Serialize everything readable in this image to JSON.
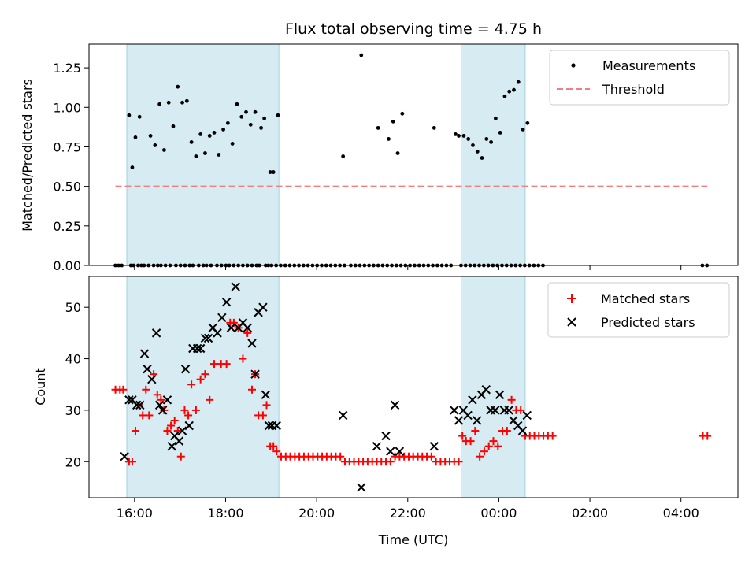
{
  "chart_data": [
    {
      "type": "scatter",
      "title": "Flux total observing time = 4.75 h",
      "xlabel": "",
      "ylabel": "Matched/Predicted stars",
      "ylim": [
        0,
        1.4
      ],
      "yticks": [
        "0.00",
        "0.25",
        "0.50",
        "0.75",
        "1.00",
        "1.25"
      ],
      "ytick_values": [
        0,
        0.25,
        0.5,
        0.75,
        1.0,
        1.25
      ],
      "xlim_hours": [
        15.0,
        29.25
      ],
      "xticks": [],
      "legend": {
        "placement": "top-right",
        "entries": [
          "Measurements",
          "Threshold"
        ]
      },
      "shaded_spans_hours": [
        [
          15.83,
          19.17
        ],
        [
          23.17,
          24.58
        ]
      ],
      "threshold": {
        "name": "Threshold",
        "y": 0.5,
        "x_start_hours": 15.58,
        "x_end_hours": 28.58,
        "color": "#f08080"
      },
      "series": [
        {
          "name": "Measurements",
          "color": "#000000",
          "x_hours": [
            15.58,
            15.65,
            15.72,
            15.92,
            15.98,
            16.08,
            16.15,
            16.21,
            16.31,
            16.42,
            16.51,
            16.58,
            16.68,
            16.78,
            16.91,
            17.01,
            17.11,
            17.21,
            17.28,
            17.41,
            17.51,
            17.58,
            17.68,
            17.81,
            17.91,
            18.01,
            18.08,
            18.18,
            18.28,
            18.38,
            18.48,
            18.58,
            18.68,
            18.74,
            18.88,
            18.94,
            19.01,
            19.11,
            19.21,
            19.31,
            19.41,
            19.51,
            19.61,
            19.71,
            19.81,
            19.91,
            20.01,
            20.11,
            20.21,
            20.31,
            20.41,
            20.51,
            20.61,
            20.75,
            20.85,
            20.95,
            21.05,
            21.15,
            21.25,
            21.35,
            21.45,
            21.55,
            21.65,
            21.75,
            21.85,
            21.95,
            22.05,
            22.15,
            22.25,
            22.35,
            22.45,
            22.55,
            22.65,
            22.75,
            22.85,
            22.95,
            23.17,
            23.27,
            23.37,
            23.47,
            23.57,
            23.67,
            23.77,
            23.87,
            23.97,
            24.07,
            24.17,
            24.27,
            24.37,
            24.47,
            24.57,
            24.67,
            24.77,
            24.87,
            24.97,
            28.47,
            28.57,
            15.88,
            15.95,
            16.02,
            16.11,
            16.35,
            16.45,
            16.55,
            16.65,
            16.75,
            16.85,
            16.95,
            17.05,
            17.15,
            17.25,
            17.35,
            17.45,
            17.55,
            17.65,
            17.75,
            17.85,
            17.95,
            18.05,
            18.15,
            18.25,
            18.35,
            18.45,
            18.55,
            18.65,
            18.78,
            18.85,
            18.98,
            19.05,
            19.15,
            20.58,
            20.98,
            21.35,
            21.58,
            21.68,
            21.78,
            21.88,
            22.58,
            23.05,
            23.12,
            23.23,
            23.33,
            23.43,
            23.53,
            23.63,
            23.73,
            23.83,
            23.93,
            24.03,
            24.13,
            24.23,
            24.33,
            24.43,
            24.53,
            24.63
          ],
          "y": [
            0,
            0,
            0,
            0,
            0,
            0,
            0,
            0,
            0,
            0,
            0,
            0,
            0,
            0,
            0,
            0,
            0,
            0,
            0,
            0,
            0,
            0,
            0,
            0,
            0,
            0,
            0,
            0,
            0,
            0,
            0,
            0,
            0,
            0,
            0,
            0,
            0,
            0,
            0,
            0,
            0,
            0,
            0,
            0,
            0,
            0,
            0,
            0,
            0,
            0,
            0,
            0,
            0,
            0,
            0,
            0,
            0,
            0,
            0,
            0,
            0,
            0,
            0,
            0,
            0,
            0,
            0,
            0,
            0,
            0,
            0,
            0,
            0,
            0,
            0,
            0,
            0,
            0,
            0,
            0,
            0,
            0,
            0,
            0,
            0,
            0,
            0,
            0,
            0,
            0,
            0,
            0,
            0,
            0,
            0,
            0,
            0,
            0.95,
            0.62,
            0.81,
            0.94,
            0.82,
            0.76,
            1.02,
            0.73,
            1.03,
            0.88,
            1.13,
            1.03,
            1.04,
            0.78,
            0.69,
            0.83,
            0.71,
            0.82,
            0.84,
            0.7,
            0.86,
            0.9,
            0.77,
            1.02,
            0.94,
            0.97,
            0.89,
            0.97,
            0.87,
            0.93,
            0.59,
            0.59,
            0.95,
            0.69,
            1.33,
            0.87,
            0.8,
            0.91,
            0.71,
            0.96,
            0.87,
            0.83,
            0.82,
            0.82,
            0.8,
            0.76,
            0.72,
            0.68,
            0.8,
            0.78,
            0.93,
            0.84,
            1.07,
            1.1,
            1.11,
            1.16,
            0.86,
            0.9
          ]
        }
      ]
    },
    {
      "type": "scatter",
      "title": "",
      "xlabel": "Time (UTC)",
      "ylabel": "Count",
      "ylim": [
        13,
        56
      ],
      "yticks": [
        "20",
        "30",
        "40",
        "50"
      ],
      "ytick_values": [
        20,
        30,
        40,
        50
      ],
      "xlim_hours": [
        15.0,
        29.25
      ],
      "xticks": [
        "16:00",
        "18:00",
        "20:00",
        "22:00",
        "00:00",
        "02:00",
        "04:00"
      ],
      "xtick_hours": [
        16,
        18,
        20,
        22,
        24,
        26,
        28
      ],
      "legend": {
        "placement": "top-right",
        "entries": [
          "Matched stars",
          "Predicted stars"
        ]
      },
      "shaded_spans_hours": [
        [
          15.83,
          19.17
        ],
        [
          23.17,
          24.58
        ]
      ],
      "series": [
        {
          "name": "Matched stars",
          "marker": "plus",
          "color": "#ff0000",
          "x_hours": [
            15.58,
            15.68,
            15.75,
            15.88,
            15.95,
            16.02,
            16.1,
            16.18,
            16.25,
            16.32,
            16.42,
            16.5,
            16.58,
            16.65,
            16.72,
            16.8,
            16.88,
            16.95,
            17.02,
            17.1,
            17.18,
            17.25,
            17.35,
            17.45,
            17.55,
            17.65,
            17.75,
            17.9,
            18.02,
            18.1,
            18.18,
            18.28,
            18.38,
            18.48,
            18.58,
            18.65,
            18.72,
            18.82,
            18.9,
            18.98,
            19.05,
            19.12,
            19.22,
            19.32,
            19.42,
            19.52,
            19.62,
            19.72,
            19.82,
            19.92,
            20.02,
            20.12,
            20.22,
            20.32,
            20.42,
            20.52,
            20.62,
            20.72,
            20.82,
            20.92,
            21.02,
            21.12,
            21.22,
            21.32,
            21.42,
            21.52,
            21.62,
            21.72,
            21.82,
            21.92,
            22.02,
            22.12,
            22.22,
            22.32,
            22.42,
            22.52,
            22.62,
            22.72,
            22.82,
            22.92,
            23.02,
            23.12,
            23.2,
            23.28,
            23.38,
            23.48,
            23.58,
            23.68,
            23.78,
            23.88,
            23.98,
            24.08,
            24.18,
            24.28,
            24.38,
            24.48,
            24.58,
            24.68,
            24.78,
            24.88,
            24.98,
            25.08,
            25.18,
            28.48,
            28.58
          ],
          "y": [
            34,
            34,
            34,
            20,
            20,
            26,
            31,
            29,
            34,
            29,
            37,
            33,
            32,
            30,
            26,
            27,
            28,
            26,
            21,
            30,
            29,
            35,
            30,
            36,
            37,
            32,
            39,
            39,
            39,
            47,
            47,
            46,
            40,
            45,
            34,
            37,
            29,
            29,
            31,
            23,
            23,
            22,
            21,
            21,
            21,
            21,
            21,
            21,
            21,
            21,
            21,
            21,
            21,
            21,
            21,
            21,
            20,
            20,
            20,
            20,
            20,
            20,
            20,
            20,
            20,
            20,
            20,
            21,
            21,
            21,
            21,
            21,
            21,
            21,
            21,
            21,
            20,
            20,
            20,
            20,
            20,
            20,
            25,
            24,
            24,
            26,
            21,
            22,
            23,
            24,
            23,
            26,
            26,
            32,
            30,
            30,
            25,
            25,
            25,
            25,
            25,
            25,
            25,
            25,
            25
          ]
        },
        {
          "name": "Predicted stars",
          "marker": "x",
          "color": "#000000",
          "x_hours": [
            15.78,
            15.88,
            15.95,
            16.05,
            16.12,
            16.22,
            16.28,
            16.38,
            16.48,
            16.55,
            16.62,
            16.72,
            16.82,
            16.88,
            16.98,
            17.05,
            17.12,
            17.2,
            17.28,
            17.38,
            17.45,
            17.55,
            17.62,
            17.72,
            17.82,
            17.92,
            18.02,
            18.12,
            18.22,
            18.28,
            18.38,
            18.48,
            18.58,
            18.65,
            18.72,
            18.82,
            18.88,
            18.95,
            19.02,
            19.12,
            20.58,
            20.98,
            21.32,
            21.52,
            21.62,
            21.72,
            21.82,
            22.58,
            23.02,
            23.12,
            23.22,
            23.32,
            23.42,
            23.52,
            23.62,
            23.72,
            23.82,
            23.92,
            24.02,
            24.12,
            24.22,
            24.32,
            24.42,
            24.52,
            24.62
          ],
          "y": [
            21,
            32,
            32,
            31,
            31,
            41,
            38,
            36,
            45,
            31,
            30,
            32,
            23,
            25,
            24,
            26,
            38,
            27,
            42,
            42,
            42,
            44,
            44,
            46,
            45,
            48,
            51,
            46,
            54,
            46,
            47,
            46,
            43,
            37,
            49,
            50,
            33,
            27,
            27,
            27,
            29,
            15,
            23,
            25,
            22,
            31,
            22,
            23,
            30,
            28,
            30,
            29,
            32,
            28,
            33,
            34,
            30,
            30,
            33,
            30,
            30,
            28,
            27,
            26,
            29
          ]
        }
      ]
    }
  ]
}
